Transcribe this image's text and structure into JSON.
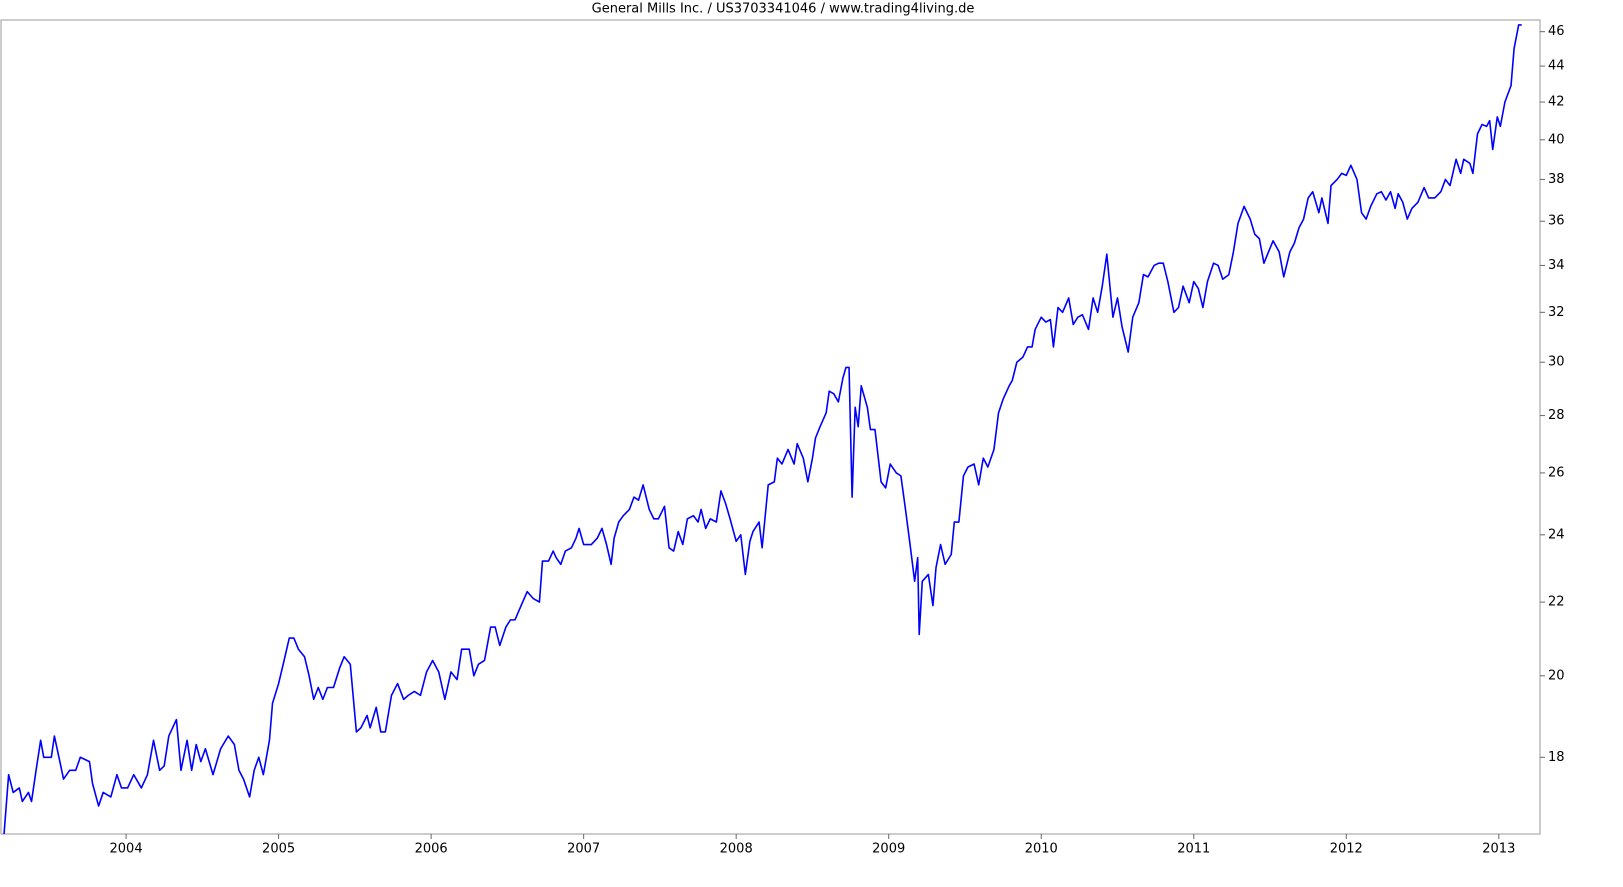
{
  "chart_data": {
    "type": "line",
    "title": "General Mills Inc. / US3703341046 / www.trading4living.de",
    "color": "#0000ff",
    "log_scale": true,
    "grid": false,
    "xlim": [
      2003.18,
      2013.27
    ],
    "xticks": [
      2004,
      2005,
      2006,
      2007,
      2008,
      2009,
      2010,
      2011,
      2012,
      2013
    ],
    "ylim": [
      16.3,
      46.7
    ],
    "yticks": [
      18,
      20,
      22,
      24,
      26,
      28,
      30,
      32,
      34,
      36,
      38,
      40,
      42,
      44,
      46
    ],
    "x": [
      2003.2,
      2003.23,
      2003.26,
      2003.3,
      2003.32,
      2003.36,
      2003.38,
      2003.41,
      2003.44,
      2003.46,
      2003.51,
      2003.53,
      2003.56,
      2003.59,
      2003.63,
      2003.67,
      2003.7,
      2003.76,
      2003.78,
      2003.82,
      2003.85,
      2003.9,
      2003.94,
      2003.97,
      2004.01,
      2004.05,
      2004.1,
      2004.14,
      2004.18,
      2004.22,
      2004.25,
      2004.28,
      2004.33,
      2004.36,
      2004.4,
      2004.43,
      2004.46,
      2004.49,
      2004.52,
      2004.57,
      2004.62,
      2004.67,
      2004.71,
      2004.74,
      2004.77,
      2004.81,
      2004.84,
      2004.87,
      2004.9,
      2004.94,
      2004.96,
      2005.0,
      2005.03,
      2005.07,
      2005.1,
      2005.13,
      2005.17,
      2005.2,
      2005.23,
      2005.26,
      2005.29,
      2005.32,
      2005.36,
      2005.4,
      2005.43,
      2005.47,
      2005.51,
      2005.54,
      2005.58,
      2005.6,
      2005.64,
      2005.67,
      2005.7,
      2005.74,
      2005.78,
      2005.82,
      2005.85,
      2005.89,
      2005.93,
      2005.97,
      2006.01,
      2006.05,
      2006.09,
      2006.13,
      2006.17,
      2006.2,
      2006.25,
      2006.28,
      2006.31,
      2006.35,
      2006.39,
      2006.42,
      2006.45,
      2006.49,
      2006.52,
      2006.55,
      2006.59,
      2006.63,
      2006.67,
      2006.71,
      2006.73,
      2006.77,
      2006.8,
      2006.82,
      2006.85,
      2006.88,
      2006.92,
      2006.95,
      2006.97,
      2007.0,
      2007.05,
      2007.09,
      2007.12,
      2007.15,
      2007.18,
      2007.2,
      2007.23,
      2007.26,
      2007.3,
      2007.33,
      2007.36,
      2007.39,
      2007.43,
      2007.46,
      2007.49,
      2007.53,
      2007.56,
      2007.59,
      2007.62,
      2007.65,
      2007.68,
      2007.72,
      2007.75,
      2007.77,
      2007.8,
      2007.83,
      2007.87,
      2007.9,
      2007.93,
      2007.96,
      2008.0,
      2008.03,
      2008.06,
      2008.09,
      2008.11,
      2008.15,
      2008.17,
      2008.21,
      2008.25,
      2008.27,
      2008.3,
      2008.34,
      2008.38,
      2008.4,
      2008.44,
      2008.47,
      2008.5,
      2008.52,
      2008.55,
      2008.59,
      2008.61,
      2008.64,
      2008.67,
      2008.7,
      2008.72,
      2008.74,
      2008.76,
      2008.78,
      2008.8,
      2008.82,
      2008.86,
      2008.88,
      2008.91,
      2008.95,
      2008.98,
      2009.01,
      2009.05,
      2009.08,
      2009.11,
      2009.14,
      2009.17,
      2009.19,
      2009.2,
      2009.22,
      2009.26,
      2009.29,
      2009.31,
      2009.34,
      2009.37,
      2009.41,
      2009.43,
      2009.46,
      2009.49,
      2009.52,
      2009.56,
      2009.59,
      2009.62,
      2009.65,
      2009.69,
      2009.72,
      2009.75,
      2009.79,
      2009.81,
      2009.84,
      2009.88,
      2009.91,
      2009.94,
      2009.96,
      2010.0,
      2010.03,
      2010.06,
      2010.08,
      2010.11,
      2010.14,
      2010.18,
      2010.21,
      2010.24,
      2010.27,
      2010.31,
      2010.34,
      2010.37,
      2010.4,
      2010.43,
      2010.47,
      2010.5,
      2010.53,
      2010.57,
      2010.6,
      2010.64,
      2010.67,
      2010.7,
      2010.74,
      2010.77,
      2010.8,
      2010.83,
      2010.87,
      2010.9,
      2010.93,
      2010.97,
      2011.0,
      2011.03,
      2011.06,
      2011.09,
      2011.13,
      2011.16,
      2011.19,
      2011.23,
      2011.26,
      2011.29,
      2011.33,
      2011.37,
      2011.4,
      2011.43,
      2011.46,
      2011.49,
      2011.52,
      2011.56,
      2011.59,
      2011.63,
      2011.66,
      2011.69,
      2011.72,
      2011.75,
      2011.78,
      2011.82,
      2011.84,
      2011.88,
      2011.9,
      2011.94,
      2011.97,
      2012.0,
      2012.03,
      2012.07,
      2012.1,
      2012.13,
      2012.16,
      2012.2,
      2012.23,
      2012.26,
      2012.29,
      2012.32,
      2012.34,
      2012.37,
      2012.4,
      2012.43,
      2012.47,
      2012.51,
      2012.54,
      2012.58,
      2012.62,
      2012.65,
      2012.68,
      2012.72,
      2012.75,
      2012.77,
      2012.81,
      2012.83,
      2012.86,
      2012.89,
      2012.92,
      2012.94,
      2012.96,
      2012.99,
      2013.01,
      2013.04,
      2013.08,
      2013.1,
      2013.13,
      2013.15
    ],
    "values": [
      16.3,
      17.6,
      17.2,
      17.3,
      17.0,
      17.2,
      17.0,
      17.7,
      18.4,
      18.0,
      18.0,
      18.5,
      18.0,
      17.5,
      17.7,
      17.7,
      18.0,
      17.9,
      17.4,
      16.9,
      17.2,
      17.1,
      17.6,
      17.3,
      17.3,
      17.6,
      17.3,
      17.6,
      18.4,
      17.7,
      17.8,
      18.5,
      18.9,
      17.7,
      18.4,
      17.7,
      18.3,
      17.9,
      18.2,
      17.6,
      18.2,
      18.5,
      18.3,
      17.7,
      17.5,
      17.1,
      17.7,
      18.0,
      17.6,
      18.4,
      19.3,
      19.8,
      20.3,
      21.0,
      21.0,
      20.7,
      20.5,
      20.0,
      19.4,
      19.7,
      19.4,
      19.7,
      19.7,
      20.2,
      20.5,
      20.3,
      18.6,
      18.7,
      19.0,
      18.7,
      19.2,
      18.6,
      18.6,
      19.5,
      19.8,
      19.4,
      19.5,
      19.6,
      19.5,
      20.1,
      20.4,
      20.1,
      19.4,
      20.1,
      19.9,
      20.7,
      20.7,
      20.0,
      20.3,
      20.4,
      21.3,
      21.3,
      20.8,
      21.3,
      21.5,
      21.5,
      21.9,
      22.3,
      22.1,
      22.0,
      23.2,
      23.2,
      23.5,
      23.3,
      23.1,
      23.5,
      23.6,
      23.9,
      24.2,
      23.7,
      23.7,
      23.9,
      24.2,
      23.7,
      23.1,
      23.9,
      24.4,
      24.6,
      24.8,
      25.2,
      25.1,
      25.6,
      24.8,
      24.5,
      24.5,
      24.9,
      23.6,
      23.5,
      24.1,
      23.7,
      24.5,
      24.6,
      24.4,
      24.8,
      24.2,
      24.5,
      24.4,
      25.4,
      25.0,
      24.5,
      23.8,
      24.0,
      22.8,
      23.8,
      24.1,
      24.4,
      23.6,
      25.6,
      25.7,
      26.5,
      26.3,
      26.8,
      26.3,
      27.0,
      26.5,
      25.7,
      26.5,
      27.2,
      27.6,
      28.1,
      28.9,
      28.8,
      28.5,
      29.4,
      29.8,
      29.8,
      25.2,
      28.3,
      27.6,
      29.1,
      28.3,
      27.5,
      27.5,
      25.7,
      25.5,
      26.3,
      26.0,
      25.9,
      24.8,
      23.7,
      22.6,
      23.3,
      21.1,
      22.6,
      22.8,
      21.9,
      23.0,
      23.7,
      23.1,
      23.4,
      24.4,
      24.4,
      25.9,
      26.2,
      26.3,
      25.6,
      26.5,
      26.2,
      26.8,
      28.1,
      28.6,
      29.1,
      29.3,
      30.0,
      30.2,
      30.6,
      30.6,
      31.3,
      31.8,
      31.6,
      31.7,
      30.6,
      32.2,
      32.0,
      32.6,
      31.5,
      31.8,
      31.9,
      31.3,
      32.6,
      32.0,
      33.1,
      34.5,
      31.8,
      32.6,
      31.4,
      30.4,
      31.8,
      32.4,
      33.6,
      33.5,
      34.0,
      34.1,
      34.1,
      33.3,
      32.0,
      32.2,
      33.1,
      32.4,
      33.3,
      33.0,
      32.2,
      33.3,
      34.1,
      34.0,
      33.4,
      33.6,
      34.6,
      35.9,
      36.7,
      36.1,
      35.4,
      35.2,
      34.1,
      34.6,
      35.1,
      34.6,
      33.5,
      34.6,
      35.0,
      35.7,
      36.1,
      37.1,
      37.4,
      36.4,
      37.1,
      35.9,
      37.7,
      38.0,
      38.3,
      38.2,
      38.7,
      38.0,
      36.4,
      36.1,
      36.7,
      37.3,
      37.4,
      37.0,
      37.4,
      36.6,
      37.3,
      36.9,
      36.1,
      36.6,
      36.9,
      37.6,
      37.1,
      37.1,
      37.4,
      38.0,
      37.7,
      39.0,
      38.3,
      39.0,
      38.8,
      38.3,
      40.3,
      40.8,
      40.7,
      41.0,
      39.5,
      41.2,
      40.7,
      42.0,
      42.9,
      45.0,
      46.4,
      46.4
    ]
  }
}
